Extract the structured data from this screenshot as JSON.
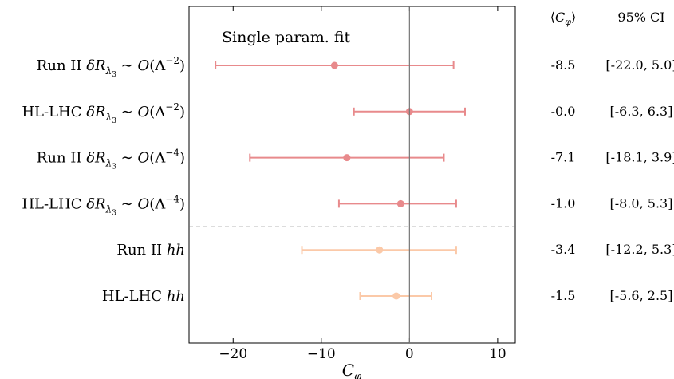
{
  "chart_data": {
    "type": "errorbar",
    "annotation": "Single param. fit",
    "xlabel_main": "C",
    "xlabel_sub": "φ",
    "xlim": [
      -25,
      12
    ],
    "xticks": [
      -20,
      -10,
      0,
      10
    ],
    "xtick_labels": [
      "−20",
      "−10",
      "0",
      "10"
    ],
    "vertical_reference_line": 0,
    "separator_after_row": 4,
    "column_headers": {
      "mean_open": "⟨",
      "mean_main": "C",
      "mean_sub": "φ",
      "mean_close": "⟩",
      "ci": "95% CI"
    },
    "rows": [
      {
        "label_pre": "Run II ",
        "label_dr": "δR",
        "label_lambda": "λ",
        "label_lambda_sub": "3",
        "label_sim": " ∼ ",
        "label_O": "O",
        "label_paren_open": "(Λ",
        "label_exp": "−2",
        "label_paren_close": ")",
        "mean": -8.5,
        "ci_low": -22.0,
        "ci_high": 5.0,
        "mean_text": "-8.5",
        "ci_text": "[-22.0, 5.0]",
        "color": "#e88a8c"
      },
      {
        "label_pre": "HL-LHC ",
        "label_dr": "δR",
        "label_lambda": "λ",
        "label_lambda_sub": "3",
        "label_sim": " ∼ ",
        "label_O": "O",
        "label_paren_open": "(Λ",
        "label_exp": "−2",
        "label_paren_close": ")",
        "mean": -0.0,
        "ci_low": -6.3,
        "ci_high": 6.3,
        "mean_text": "-0.0",
        "ci_text": "[-6.3, 6.3]",
        "color": "#e88a8c"
      },
      {
        "label_pre": "Run II ",
        "label_dr": "δR",
        "label_lambda": "λ",
        "label_lambda_sub": "3",
        "label_sim": " ∼ ",
        "label_O": "O",
        "label_paren_open": "(Λ",
        "label_exp": "−4",
        "label_paren_close": ")",
        "mean": -7.1,
        "ci_low": -18.1,
        "ci_high": 3.9,
        "mean_text": "-7.1",
        "ci_text": "[-18.1, 3.9]",
        "color": "#e88a8c"
      },
      {
        "label_pre": "HL-LHC ",
        "label_dr": "δR",
        "label_lambda": "λ",
        "label_lambda_sub": "3",
        "label_sim": " ∼ ",
        "label_O": "O",
        "label_paren_open": "(Λ",
        "label_exp": "−4",
        "label_paren_close": ")",
        "mean": -1.0,
        "ci_low": -8.0,
        "ci_high": 5.3,
        "mean_text": "-1.0",
        "ci_text": "[-8.0, 5.3]",
        "color": "#e88a8c"
      },
      {
        "label_pre": "Run II ",
        "label_hh": "hh",
        "mean": -3.4,
        "ci_low": -12.2,
        "ci_high": 5.3,
        "mean_text": "-3.4",
        "ci_text": "[-12.2, 5.3]",
        "color": "#fbc9a8"
      },
      {
        "label_pre": "HL-LHC ",
        "label_hh": "hh",
        "mean": -1.5,
        "ci_low": -5.6,
        "ci_high": 2.5,
        "mean_text": "-1.5",
        "ci_text": "[-5.6, 2.5]",
        "color": "#fbc9a8"
      }
    ]
  }
}
